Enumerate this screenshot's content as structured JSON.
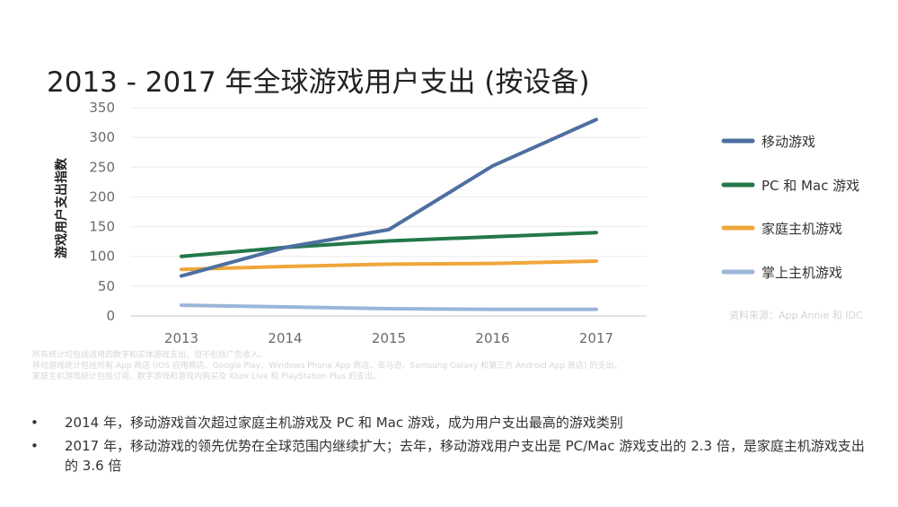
{
  "title": "2013 - 2017 年全球游戏用户支出 (按设备)",
  "chart_data": {
    "type": "line",
    "x": [
      "2013",
      "2014",
      "2015",
      "2016",
      "2017"
    ],
    "ylabel": "游戏用户支出指数",
    "ylim": [
      0,
      350
    ],
    "yticks": [
      0,
      50,
      100,
      150,
      200,
      250,
      300,
      350
    ],
    "grid": true,
    "legend_position": "right",
    "series": [
      {
        "name": "移动游戏",
        "color": "#4e6fa0",
        "values": [
          67,
          115,
          145,
          252,
          330
        ]
      },
      {
        "name": "PC 和 Mac 游戏",
        "color": "#23784a",
        "values": [
          100,
          115,
          126,
          133,
          140
        ]
      },
      {
        "name": "家庭主机游戏",
        "color": "#f0a63a",
        "values": [
          78,
          83,
          87,
          88,
          92
        ]
      },
      {
        "name": "掌上主机游戏",
        "color": "#9ab6d8",
        "values": [
          18,
          15,
          12,
          11,
          11
        ]
      }
    ],
    "source": "资料来源：App Annie 和 IDC"
  },
  "footnotes": [
    "所有统计均包括适用的数字和实体游戏支出，但不包括广告收入。",
    "移动游戏统计包括所有 App 商店 (iOS 应用商店、Google Play、Windows Phone App 商店、亚马逊、Samsung Galaxy 和第三方 Android App 商店) 的支出。",
    "家庭主机游戏统计包括订阅、数字游戏和游戏内购买及 Xbox Live 和 PlayStation Plus 的支出。"
  ],
  "bullets": [
    {
      "marker": "•",
      "text": "2014 年，移动游戏首次超过家庭主机游戏及 PC 和 Mac 游戏，成为用户支出最高的游戏类别"
    },
    {
      "marker": "•",
      "text": "2017 年，移动游戏的领先优势在全球范围内继续扩大；去年，移动游戏用户支出是 PC/Mac 游戏支出的 2.3 倍，是家庭主机游戏支出的 3.6 倍"
    }
  ]
}
